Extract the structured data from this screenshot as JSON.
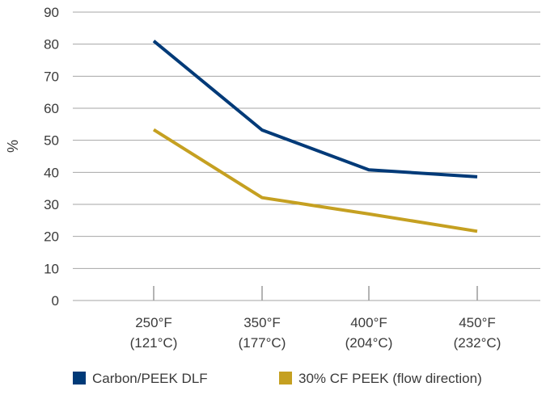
{
  "chart_data": {
    "type": "line",
    "categories": [
      "250°F (121°C)",
      "350°F (177°C)",
      "400°F (204°C)",
      "450°F (232°C)"
    ],
    "category_lines": [
      [
        "250°F",
        "(121°C)"
      ],
      [
        "350°F",
        "(177°C)"
      ],
      [
        "400°F",
        "(204°C)"
      ],
      [
        "450°F",
        "(232°C)"
      ]
    ],
    "series": [
      {
        "name": "Carbon/PEEK DLF",
        "values": [
          81,
          53.2,
          40.8,
          38.6
        ],
        "color": "#003a78"
      },
      {
        "name": "30% CF PEEK (flow direction)",
        "values": [
          53.3,
          32.1,
          27,
          21.6
        ],
        "color": "#c5a021"
      }
    ],
    "ylabel": "%",
    "xlabel": "",
    "ylim": [
      0,
      90
    ],
    "yticks": [
      0,
      10,
      20,
      30,
      40,
      50,
      60,
      70,
      80,
      90
    ],
    "grid": true,
    "legend_position": "bottom"
  }
}
